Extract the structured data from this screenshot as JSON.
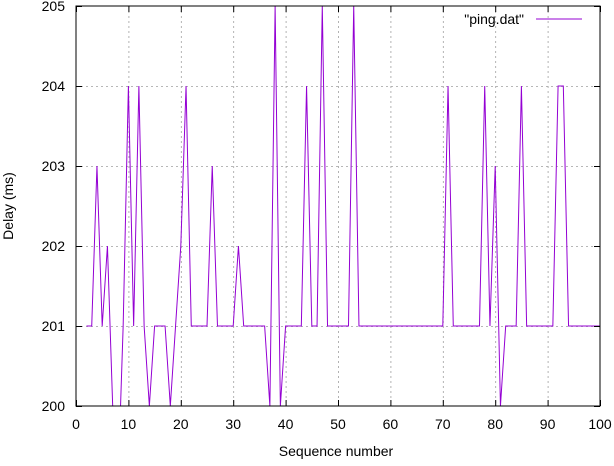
{
  "chart_data": {
    "type": "line",
    "title": "",
    "xlabel": "Sequence number",
    "ylabel": "Delay (ms)",
    "xlim": [
      0,
      100
    ],
    "ylim": [
      200,
      205
    ],
    "x_ticks": [
      0,
      10,
      20,
      30,
      40,
      50,
      60,
      70,
      80,
      90,
      100
    ],
    "y_ticks": [
      200,
      201,
      202,
      203,
      204,
      205
    ],
    "grid": true,
    "legend_position": "top-right",
    "series": [
      {
        "name": "\"ping.dat\"",
        "color": "#9400d3",
        "x": [
          2,
          3,
          4,
          5,
          6,
          7,
          8,
          9,
          10,
          11,
          12,
          13,
          14,
          15,
          16,
          17,
          18,
          19,
          20,
          21,
          22,
          23,
          24,
          25,
          26,
          27,
          28,
          29,
          30,
          31,
          32,
          33,
          34,
          35,
          36,
          37,
          38,
          39,
          40,
          41,
          42,
          43,
          44,
          45,
          46,
          47,
          48,
          49,
          50,
          51,
          52,
          53,
          54,
          55,
          56,
          57,
          58,
          59,
          60,
          61,
          62,
          63,
          64,
          65,
          66,
          67,
          68,
          69,
          70,
          71,
          72,
          73,
          74,
          75,
          76,
          77,
          78,
          79,
          80,
          81,
          82,
          83,
          84,
          85,
          86,
          87,
          88,
          89,
          90,
          91,
          92,
          93,
          94,
          95,
          96,
          97,
          98,
          99,
          100
        ],
        "y": [
          201,
          201,
          203,
          201,
          202,
          200,
          199,
          201,
          204,
          201,
          204,
          201,
          200,
          201,
          201,
          201,
          200,
          201,
          202,
          204,
          201,
          201,
          201,
          201,
          203,
          201,
          201,
          201,
          201,
          202,
          201,
          201,
          201,
          201,
          201,
          200,
          205,
          200,
          201,
          201,
          201,
          201,
          204,
          201,
          201,
          205,
          201,
          201,
          201,
          201,
          201,
          205,
          201,
          201,
          201,
          201,
          201,
          201,
          201,
          201,
          201,
          201,
          201,
          201,
          201,
          201,
          201,
          201,
          201,
          204,
          201,
          201,
          201,
          201,
          201,
          201,
          204,
          201,
          203,
          200,
          201,
          201,
          201,
          204,
          201,
          201,
          201,
          201,
          201,
          201,
          204,
          204,
          201,
          201,
          201,
          201,
          201,
          201,
          201
        ]
      }
    ]
  }
}
